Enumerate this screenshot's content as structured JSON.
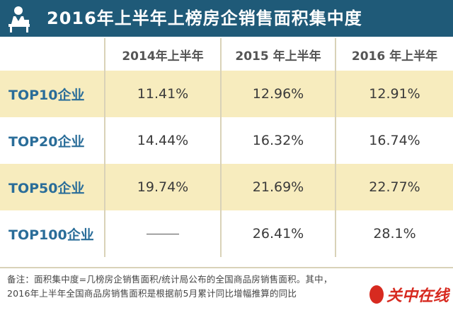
{
  "header": {
    "title": "2016年上半年上榜房企销售面积集中度",
    "icon": "person-desk-icon"
  },
  "table": {
    "columns": [
      "",
      "2014年上半年",
      "2015 年上半年",
      "2016 年上半年"
    ],
    "rows": [
      {
        "label": "TOP10企业",
        "values": [
          "11.41%",
          "12.96%",
          "12.91%"
        ]
      },
      {
        "label": "TOP20企业",
        "values": [
          "14.44%",
          "16.32%",
          "16.74%"
        ]
      },
      {
        "label": "TOP50企业",
        "values": [
          "19.74%",
          "21.69%",
          "22.77%"
        ]
      },
      {
        "label": "TOP100企业",
        "values": [
          "",
          "26.41%",
          "28.1%"
        ]
      }
    ]
  },
  "footer": {
    "note_line1": "备注：面积集中度=几榜房企销售面积/统计局公布的全国商品房销售面积。其中，",
    "note_line2": "2016年上半年全国商品房销售面积是根据前5月累计同比增幅推算的同比",
    "watermark": "关中在线"
  },
  "colors": {
    "header_bg": "#1f5a78",
    "row_shade": "#f7ecbe",
    "row_label": "#2a6d99",
    "watermark": "#d72a20"
  }
}
